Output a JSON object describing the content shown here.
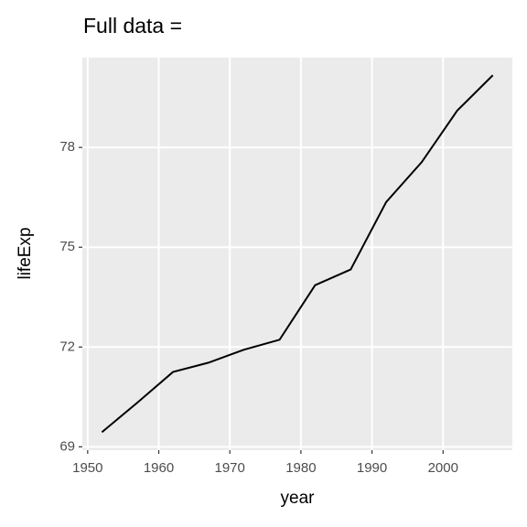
{
  "chart_data": {
    "type": "line",
    "title": "Full data =",
    "x_label": "year",
    "y_label": "lifeExp",
    "x": [
      1952,
      1957,
      1962,
      1967,
      1972,
      1977,
      1982,
      1987,
      1992,
      1997,
      2002,
      2007
    ],
    "series": [
      {
        "color": "#000000",
        "values": [
          69.44,
          70.33,
          71.25,
          71.53,
          71.92,
          72.22,
          73.86,
          74.33,
          76.36,
          77.56,
          79.11,
          80.17
        ]
      }
    ],
    "xlim": [
      1949.25,
      2009.75
    ],
    "xticks": [
      1950,
      1960,
      1970,
      1980,
      1990,
      2000
    ],
    "ylim": [
      68.9,
      80.7
    ],
    "yticks": [
      69,
      72,
      75,
      78
    ],
    "grid": true
  }
}
